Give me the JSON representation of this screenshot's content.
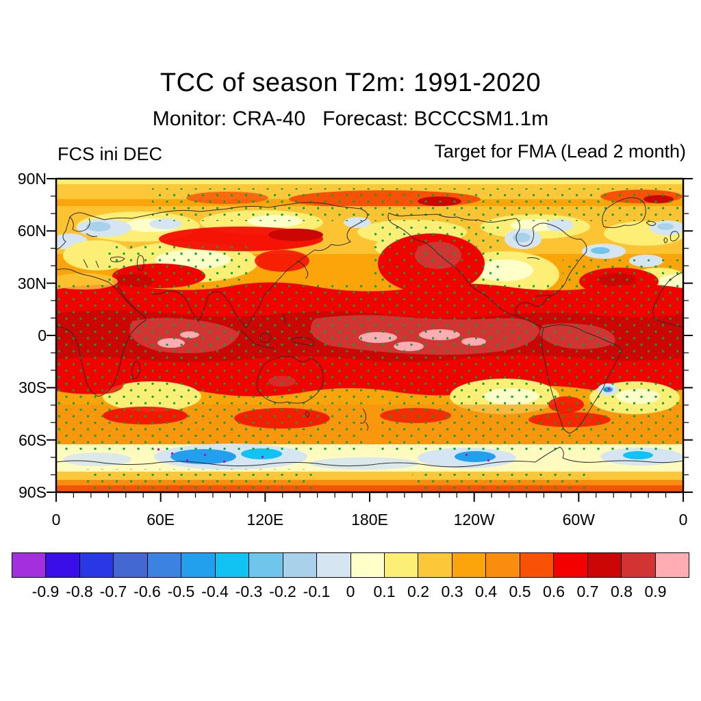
{
  "figure": {
    "title": "TCC of season T2m: 1991-2020",
    "subtitle": "Monitor: CRA-40   Forecast: BCCCSM1.1m",
    "left_header": "FCS ini DEC",
    "right_header": "Target for FMA (Lead 2 month)"
  },
  "map": {
    "y_axis": {
      "ticks": [
        {
          "label": "90N",
          "lat": 90
        },
        {
          "label": "60N",
          "lat": 60
        },
        {
          "label": "30N",
          "lat": 30
        },
        {
          "label": "0",
          "lat": 0
        },
        {
          "label": "30S",
          "lat": -30
        },
        {
          "label": "60S",
          "lat": -60
        },
        {
          "label": "90S",
          "lat": -90
        }
      ],
      "minor_step_deg": 10
    },
    "x_axis": {
      "ticks": [
        {
          "label": "0",
          "lon": 0
        },
        {
          "label": "60E",
          "lon": 60
        },
        {
          "label": "120E",
          "lon": 120
        },
        {
          "label": "180E",
          "lon": 180
        },
        {
          "label": "120W",
          "lon": 240
        },
        {
          "label": "60W",
          "lon": 300
        },
        {
          "label": "0",
          "lon": 360
        }
      ],
      "minor_step_deg": 10
    }
  },
  "colorbar": {
    "tick_labels": [
      "-0.9",
      "-0.8",
      "-0.7",
      "-0.6",
      "-0.5",
      "-0.4",
      "-0.3",
      "-0.2",
      "-0.1",
      "0",
      "0.1",
      "0.2",
      "0.3",
      "0.4",
      "0.5",
      "0.6",
      "0.7",
      "0.8",
      "0.9"
    ],
    "colors": [
      "#A330DC",
      "#3A0EE8",
      "#2838E6",
      "#4468D2",
      "#3C82E0",
      "#22A0EE",
      "#10C3F2",
      "#70C6EA",
      "#AAD1EA",
      "#D5E5F2",
      "#FFFFC9",
      "#FDEF75",
      "#FCC83A",
      "#FCA50A",
      "#FA8C10",
      "#F95206",
      "#F40000",
      "#CC0505",
      "#D23333",
      "#FFADB3"
    ]
  },
  "stipple": {
    "positive_color": "#00A832",
    "negative_color": "#CC00CC",
    "meaning_positive": "green dots: statistically significant positive TCC",
    "meaning_negative": "magenta dots: statistically significant negative TCC"
  },
  "chart_data": {
    "type": "heatmap",
    "subtype": "filled-contour global map with significance stippling",
    "title": "TCC of season T2m: 1991-2020",
    "variable": "Temporal correlation coefficient (TCC) of seasonal 2 m temperature",
    "monitor_dataset": "CRA-40",
    "forecast_model": "BCCCSM1.1m",
    "forecast_init_month": "DEC",
    "target_season": "FMA",
    "lead_months": 2,
    "verification_period": "1991-2020",
    "projection": "equirectangular",
    "lon_range": [
      0,
      360
    ],
    "lat_range": [
      -90,
      90
    ],
    "contour_levels": [
      -0.9,
      -0.8,
      -0.7,
      -0.6,
      -0.5,
      -0.4,
      -0.3,
      -0.2,
      -0.1,
      0,
      0.1,
      0.2,
      0.3,
      0.4,
      0.5,
      0.6,
      0.7,
      0.8,
      0.9
    ],
    "approx_zonal_bands": [
      {
        "lat_band": "90N-75N",
        "typical_tcc": [
          0.2,
          0.6
        ],
        "notes": "gold/orange with red patches near pole"
      },
      {
        "lat_band": "75N-55N",
        "typical_tcc": [
          -0.1,
          0.5
        ],
        "notes": "patchy yellow; weak/blue spots over Barents Sea, Hudson Bay, Baffin Bay, s. of Greenland"
      },
      {
        "lat_band": "55N-25N",
        "typical_tcc": [
          0.3,
          0.8
        ],
        "notes": "high TCC over North Pacific (core 0.8-0.9), Mediterranean/Middle East, NW Atlantic; weaker (0.1-0.3) over central Asia and central North America"
      },
      {
        "lat_band": "25N-25S",
        "typical_tcc": [
          0.6,
          0.95
        ],
        "notes": "highest skill; TCC 0.8-0.9 broad, > 0.9 over equatorial central Pacific and western Indian Ocean (ENSO region), densely stippled green"
      },
      {
        "lat_band": "25S-45S",
        "typical_tcc": [
          0.3,
          0.7
        ],
        "notes": "orange with yellow gaps over SE Pacific and S Atlantic"
      },
      {
        "lat_band": "45S-70S",
        "typical_tcc": [
          -0.4,
          0.4
        ],
        "notes": "pale band; negative (blue) pockets along Antarctic coast, mainly 0-150E, with magenta stippling"
      },
      {
        "lat_band": "70S-90S",
        "typical_tcc": [
          0.2,
          0.6
        ],
        "notes": "yellow-gold interior, orange-red strip at 90S"
      }
    ],
    "legend_position": "horizontal colorbar below map",
    "grid": false
  }
}
